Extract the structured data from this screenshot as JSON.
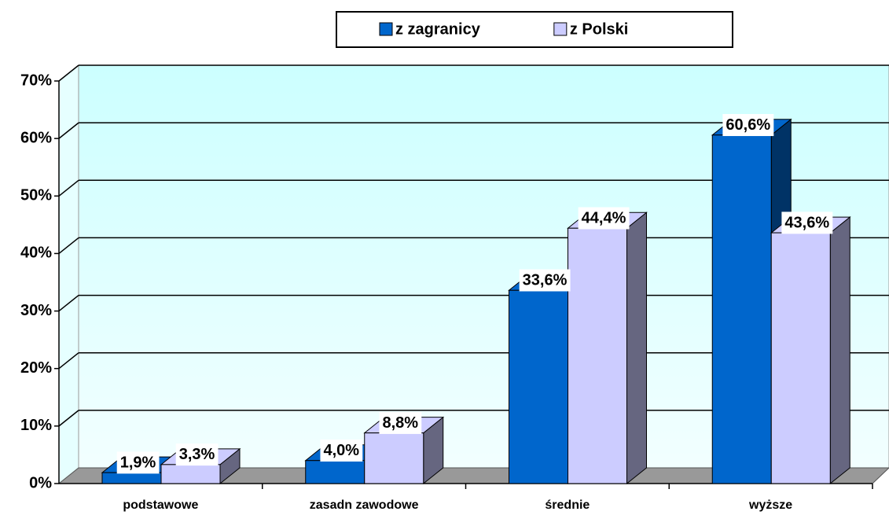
{
  "chart_data": {
    "type": "bar3d",
    "categories": [
      "podstawowe",
      "zasadn zawodowe",
      "średnie",
      "wyższe"
    ],
    "series": [
      {
        "name": "z zagranicy",
        "color": "#0066cc",
        "side_color": "#003366",
        "values": [
          1.9,
          4.0,
          33.6,
          60.6
        ],
        "value_labels": [
          "1,9%",
          "4,0%",
          "33,6%",
          "60,6%"
        ]
      },
      {
        "name": "z Polski",
        "color": "#ccccff",
        "side_color": "#666680",
        "values": [
          3.3,
          8.8,
          44.4,
          43.6
        ],
        "value_labels": [
          "3,3%",
          "8,8%",
          "44,4%",
          "43,6%"
        ]
      }
    ],
    "ylim": [
      0,
      70
    ],
    "yticks": [
      {
        "value": 0,
        "label": "0%"
      },
      {
        "value": 10,
        "label": "10%"
      },
      {
        "value": 20,
        "label": "20%"
      },
      {
        "value": 30,
        "label": "30%"
      },
      {
        "value": 40,
        "label": "40%"
      },
      {
        "value": 50,
        "label": "50%"
      },
      {
        "value": 60,
        "label": "60%"
      },
      {
        "value": 70,
        "label": "70%"
      }
    ],
    "grid": true
  }
}
